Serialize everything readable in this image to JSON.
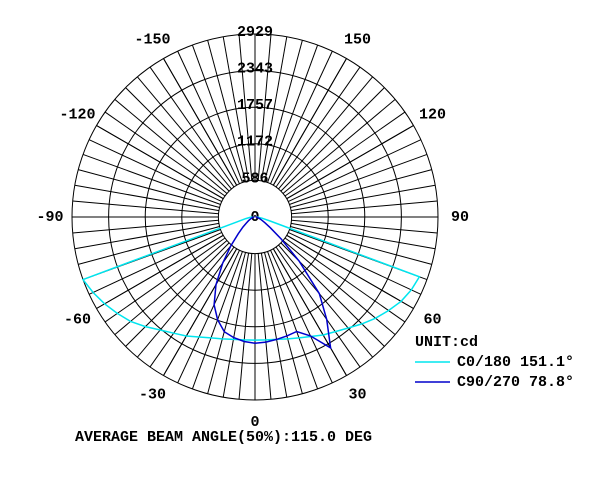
{
  "chart_data": {
    "type": "polar",
    "unit_label": "UNIT:cd",
    "footer": "AVERAGE BEAM ANGLE(50%):115.0 DEG",
    "rlim": [
      0,
      2929
    ],
    "rticks": [
      0,
      586,
      1172,
      1757,
      2343,
      2929
    ],
    "angle_ticks": [
      -150,
      -120,
      -90,
      -60,
      -30,
      0,
      30,
      60,
      90,
      120,
      150
    ],
    "x": [
      -90,
      -85,
      -80,
      -75,
      -70,
      -65,
      -60,
      -55,
      -50,
      -45,
      -40,
      -35,
      -30,
      -25,
      -20,
      -15,
      -10,
      -5,
      0,
      5,
      10,
      15,
      20,
      25,
      30,
      35,
      40,
      45,
      50,
      55,
      60,
      65,
      70,
      75,
      80,
      85,
      90
    ],
    "series": [
      {
        "name": "C0/180 151.1°",
        "color": "#00e5ee",
        "values": [
          40,
          80,
          150,
          300,
          2930,
          2860,
          2780,
          2690,
          2600,
          2480,
          2360,
          2270,
          2200,
          2120,
          2060,
          2020,
          1990,
          1975,
          1970,
          1975,
          1990,
          2020,
          2060,
          2110,
          2180,
          2240,
          2320,
          2420,
          2520,
          2610,
          2700,
          2760,
          2800,
          250,
          120,
          60,
          30
        ]
      },
      {
        "name": "C90/270 78.8°",
        "color": "#0000cc",
        "values": [
          10,
          20,
          30,
          40,
          60,
          90,
          120,
          170,
          250,
          380,
          600,
          900,
          1250,
          1550,
          1750,
          1900,
          1960,
          2000,
          2020,
          2010,
          1990,
          1970,
          1950,
          2100,
          2420,
          2000,
          1600,
          1000,
          550,
          300,
          180,
          120,
          80,
          50,
          30,
          20,
          10
        ]
      }
    ]
  }
}
